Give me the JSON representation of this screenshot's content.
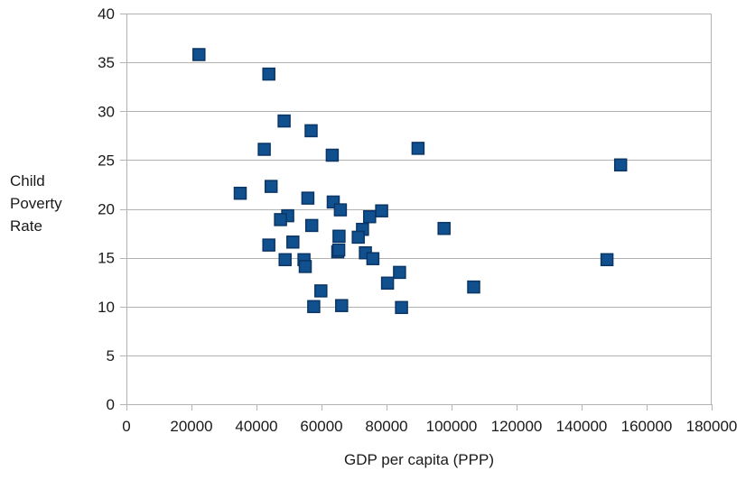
{
  "chart_data": {
    "type": "scatter",
    "title": "",
    "xlabel": "GDP per capita (PPP)",
    "ylabel_lines": [
      "Child",
      "Poverty",
      "Rate"
    ],
    "xlim": [
      0,
      180000
    ],
    "ylim": [
      0,
      40
    ],
    "x_ticks": [
      0,
      20000,
      40000,
      60000,
      80000,
      100000,
      120000,
      140000,
      160000,
      180000
    ],
    "y_ticks": [
      0,
      5,
      10,
      15,
      20,
      25,
      30,
      35,
      40
    ],
    "grid": "horizontal",
    "legend": "none",
    "marker_color": "#10508f",
    "marker_shape": "square",
    "points": [
      {
        "x": 22300,
        "y": 35.8
      },
      {
        "x": 43800,
        "y": 33.8
      },
      {
        "x": 48500,
        "y": 29.0
      },
      {
        "x": 56800,
        "y": 28.0
      },
      {
        "x": 42400,
        "y": 26.1
      },
      {
        "x": 89700,
        "y": 26.2
      },
      {
        "x": 63300,
        "y": 25.5
      },
      {
        "x": 152000,
        "y": 24.5
      },
      {
        "x": 44500,
        "y": 22.3
      },
      {
        "x": 35000,
        "y": 21.6
      },
      {
        "x": 55800,
        "y": 21.1
      },
      {
        "x": 63600,
        "y": 20.7
      },
      {
        "x": 65800,
        "y": 19.9
      },
      {
        "x": 78500,
        "y": 19.8
      },
      {
        "x": 49600,
        "y": 19.3
      },
      {
        "x": 47400,
        "y": 18.9
      },
      {
        "x": 74800,
        "y": 19.2
      },
      {
        "x": 57000,
        "y": 18.3
      },
      {
        "x": 72600,
        "y": 17.9
      },
      {
        "x": 97700,
        "y": 18.0
      },
      {
        "x": 71300,
        "y": 17.1
      },
      {
        "x": 65400,
        "y": 17.2
      },
      {
        "x": 51200,
        "y": 16.6
      },
      {
        "x": 43800,
        "y": 16.3
      },
      {
        "x": 65000,
        "y": 15.6
      },
      {
        "x": 65300,
        "y": 15.8
      },
      {
        "x": 73500,
        "y": 15.5
      },
      {
        "x": 75800,
        "y": 14.9
      },
      {
        "x": 48800,
        "y": 14.8
      },
      {
        "x": 54600,
        "y": 14.8
      },
      {
        "x": 55000,
        "y": 14.1
      },
      {
        "x": 147800,
        "y": 14.8
      },
      {
        "x": 84000,
        "y": 13.5
      },
      {
        "x": 80300,
        "y": 12.4
      },
      {
        "x": 106800,
        "y": 12.0
      },
      {
        "x": 59800,
        "y": 11.6
      },
      {
        "x": 57600,
        "y": 10.0
      },
      {
        "x": 66200,
        "y": 10.1
      },
      {
        "x": 84600,
        "y": 9.9
      }
    ]
  }
}
